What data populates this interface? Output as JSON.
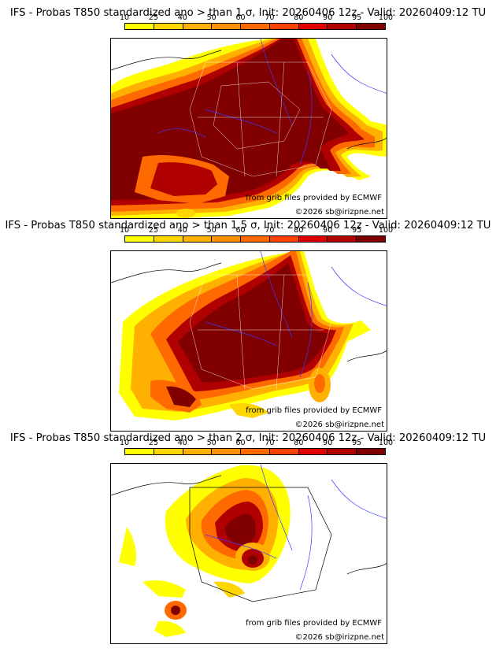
{
  "colorbar": {
    "labels": [
      "10",
      "25",
      "40",
      "50",
      "60",
      "70",
      "80",
      "90",
      "95",
      "100"
    ],
    "colors": [
      "#ffff00",
      "#ffd700",
      "#ffb000",
      "#ff9000",
      "#ff6a00",
      "#ff4000",
      "#e00000",
      "#b00000",
      "#800000"
    ]
  },
  "panels": [
    {
      "title": "IFS - Probas T850  standardized ano > than 1 σ, Init: 20260406 12z - Valid: 20260409:12 TU",
      "source": "from grib files provided by ECMWF",
      "copyright": "©2026 sb@irizpne.net",
      "threshold_sigma": 1
    },
    {
      "title": "IFS - Probas T850  standardized ano > than 1.5 σ, Init: 20260406 12z - Valid: 20260409:12 TU",
      "source": "from grib files provided by ECMWF",
      "copyright": "©2026 sb@irizpne.net",
      "threshold_sigma": 1.5
    },
    {
      "title": "IFS - Probas T850  standardized ano > than 2 σ, Init: 20260406 12z - Valid: 20260409:12 TU",
      "source": "from grib files provided by ECMWF",
      "copyright": "©2026 sb@irizpne.net",
      "threshold_sigma": 2
    }
  ]
}
